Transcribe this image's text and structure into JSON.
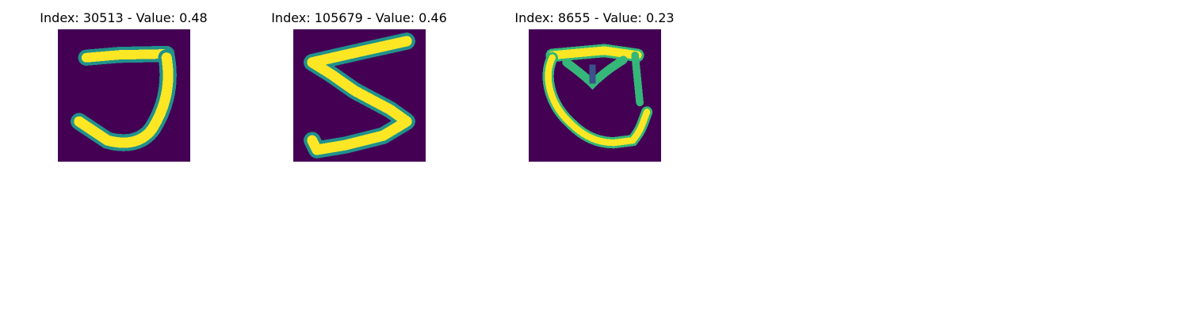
{
  "colors": {
    "background": "#440154",
    "stroke_bright": "#fde725",
    "stroke_mid": "#35b779",
    "stroke_low": "#21918c"
  },
  "panels": [
    {
      "title": "Index: 30513 - Value: 0.48",
      "depicts": "handwritten-digit-7-shape"
    },
    {
      "title": "Index: 105679 - Value: 0.46",
      "depicts": "handwritten-digit-5"
    },
    {
      "title": "Index: 8655 - Value: 0.23",
      "depicts": "handwritten-shape-cup"
    }
  ]
}
